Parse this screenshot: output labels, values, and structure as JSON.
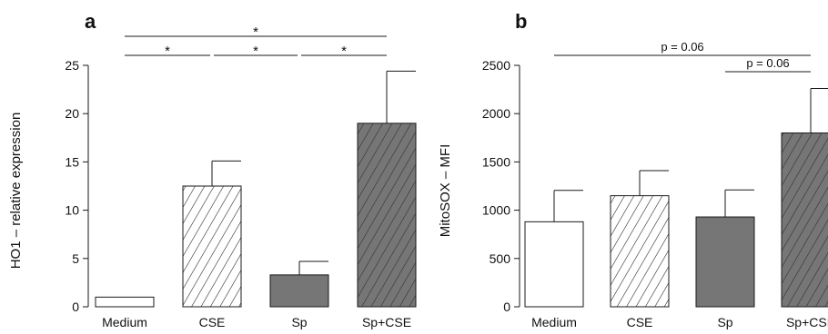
{
  "chart_data": [
    {
      "panel": "a",
      "type": "bar",
      "ylabel": "HO1 – relative expression",
      "categories": [
        "Medium",
        "CSE",
        "Sp",
        "Sp+CSE"
      ],
      "values": [
        1.0,
        12.5,
        3.3,
        19.0
      ],
      "errors": [
        0.0,
        2.6,
        1.4,
        5.4
      ],
      "fills": [
        "white",
        "hatch-white",
        "gray",
        "hatch-gray"
      ],
      "ylim": [
        0,
        25
      ],
      "yticks": [
        0,
        5,
        10,
        15,
        20,
        25
      ],
      "significance": [
        {
          "from": 0,
          "to": 3,
          "label": "*"
        },
        {
          "from": 0,
          "to": 1,
          "label": "*"
        },
        {
          "from": 1,
          "to": 2,
          "label": "*"
        },
        {
          "from": 2,
          "to": 3,
          "label": "*"
        }
      ]
    },
    {
      "panel": "b",
      "type": "bar",
      "ylabel": "MitoSOX – MFI",
      "categories": [
        "Medium",
        "CSE",
        "Sp",
        "Sp+CSE"
      ],
      "values": [
        880,
        1150,
        930,
        1800
      ],
      "errors": [
        325,
        260,
        280,
        460
      ],
      "fills": [
        "white",
        "hatch-white",
        "gray",
        "hatch-gray"
      ],
      "ylim": [
        0,
        2500
      ],
      "yticks": [
        0,
        500,
        1000,
        1500,
        2000,
        2500
      ],
      "significance": [
        {
          "from": 0,
          "to": 3,
          "label": "p = 0.06"
        },
        {
          "from": 2,
          "to": 3,
          "label": "p = 0.06"
        }
      ]
    }
  ],
  "colors": {
    "gray_bar": "#767676",
    "hatch_on_gray": "#2a2a2a",
    "hatch_on_white": "#1a1a1a",
    "axis": "#1a1a1a"
  }
}
